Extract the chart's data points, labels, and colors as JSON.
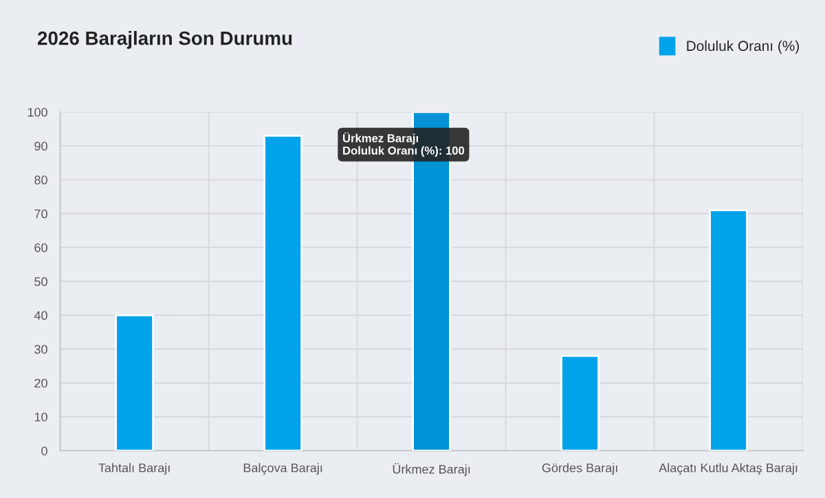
{
  "chart_data": {
    "type": "bar",
    "title": "2026 Barajların Son Durumu",
    "categories": [
      "Tahtalı Barajı",
      "Balçova Barajı",
      "Ürkmez Barajı",
      "Gördes Barajı",
      "Alaçatı Kutlu Aktaş Barajı"
    ],
    "series": [
      {
        "name": "Doluluk Oranı (%)",
        "color": "#00a3e9",
        "colors": [
          "#00a3e9",
          "#00a3e9",
          "#0092d4",
          "#00a3e9",
          "#00a3e9"
        ],
        "values": [
          40,
          93,
          100,
          28,
          71
        ]
      }
    ],
    "ylim": [
      0,
      100
    ],
    "yticks": [
      0,
      10,
      20,
      30,
      40,
      50,
      60,
      70,
      80,
      90,
      100
    ],
    "grid": true,
    "legend": "top right",
    "annotations": [
      "Ürkmez Barajı\nDoluluk Oranı (%): 100"
    ]
  }
}
